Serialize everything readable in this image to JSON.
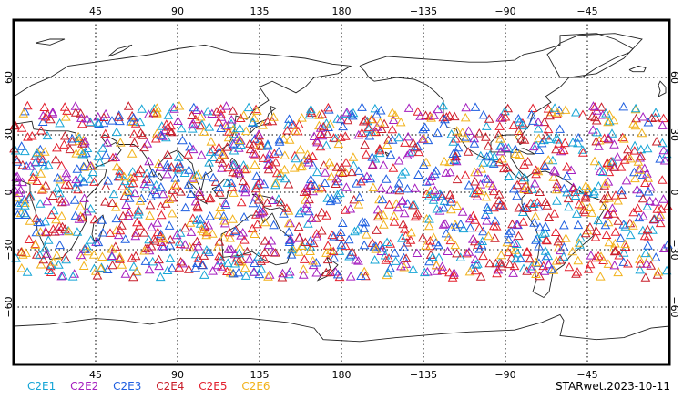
{
  "chart_data": {
    "type": "scatter",
    "map_projection": "cylindrical-equidistant",
    "center_longitude": 180,
    "lon_range": [
      0,
      360
    ],
    "lat_range": [
      -90,
      90
    ],
    "grid": "dotted",
    "marker": "triangle-open",
    "top_ticks": [
      {
        "lon": 45,
        "label": "45"
      },
      {
        "lon": 90,
        "label": "90"
      },
      {
        "lon": 135,
        "label": "135"
      },
      {
        "lon": 180,
        "label": "180"
      },
      {
        "lon": 225,
        "label": "−135"
      },
      {
        "lon": 270,
        "label": "−90"
      },
      {
        "lon": 315,
        "label": "−45"
      }
    ],
    "bottom_ticks": [
      {
        "lon": 45,
        "label": "45"
      },
      {
        "lon": 90,
        "label": "90"
      },
      {
        "lon": 135,
        "label": "135"
      },
      {
        "lon": 180,
        "label": "180"
      },
      {
        "lon": 225,
        "label": "−135"
      },
      {
        "lon": 270,
        "label": "−90"
      },
      {
        "lon": 315,
        "label": "−45"
      }
    ],
    "lat_ticks": [
      {
        "lat": 60,
        "label": "60"
      },
      {
        "lat": 30,
        "label": "30"
      },
      {
        "lat": 0,
        "label": "0"
      },
      {
        "lat": -30,
        "label": "−30"
      },
      {
        "lat": -60,
        "label": "−60"
      }
    ],
    "data_lat_band": [
      -45,
      45
    ],
    "series": [
      {
        "name": "C2E1",
        "color": "#16a5d6",
        "count": 260
      },
      {
        "name": "C2E2",
        "color": "#a51fbf",
        "count": 260
      },
      {
        "name": "C2E3",
        "color": "#1f5fe0",
        "count": 260
      },
      {
        "name": "C2E4",
        "color": "#c81e2a",
        "count": 260
      },
      {
        "name": "C2E5",
        "color": "#e3202e",
        "count": 260
      },
      {
        "name": "C2E6",
        "color": "#f2b21b",
        "count": 260
      }
    ]
  },
  "footer": {
    "label": "STARwet.2023-10-11"
  }
}
